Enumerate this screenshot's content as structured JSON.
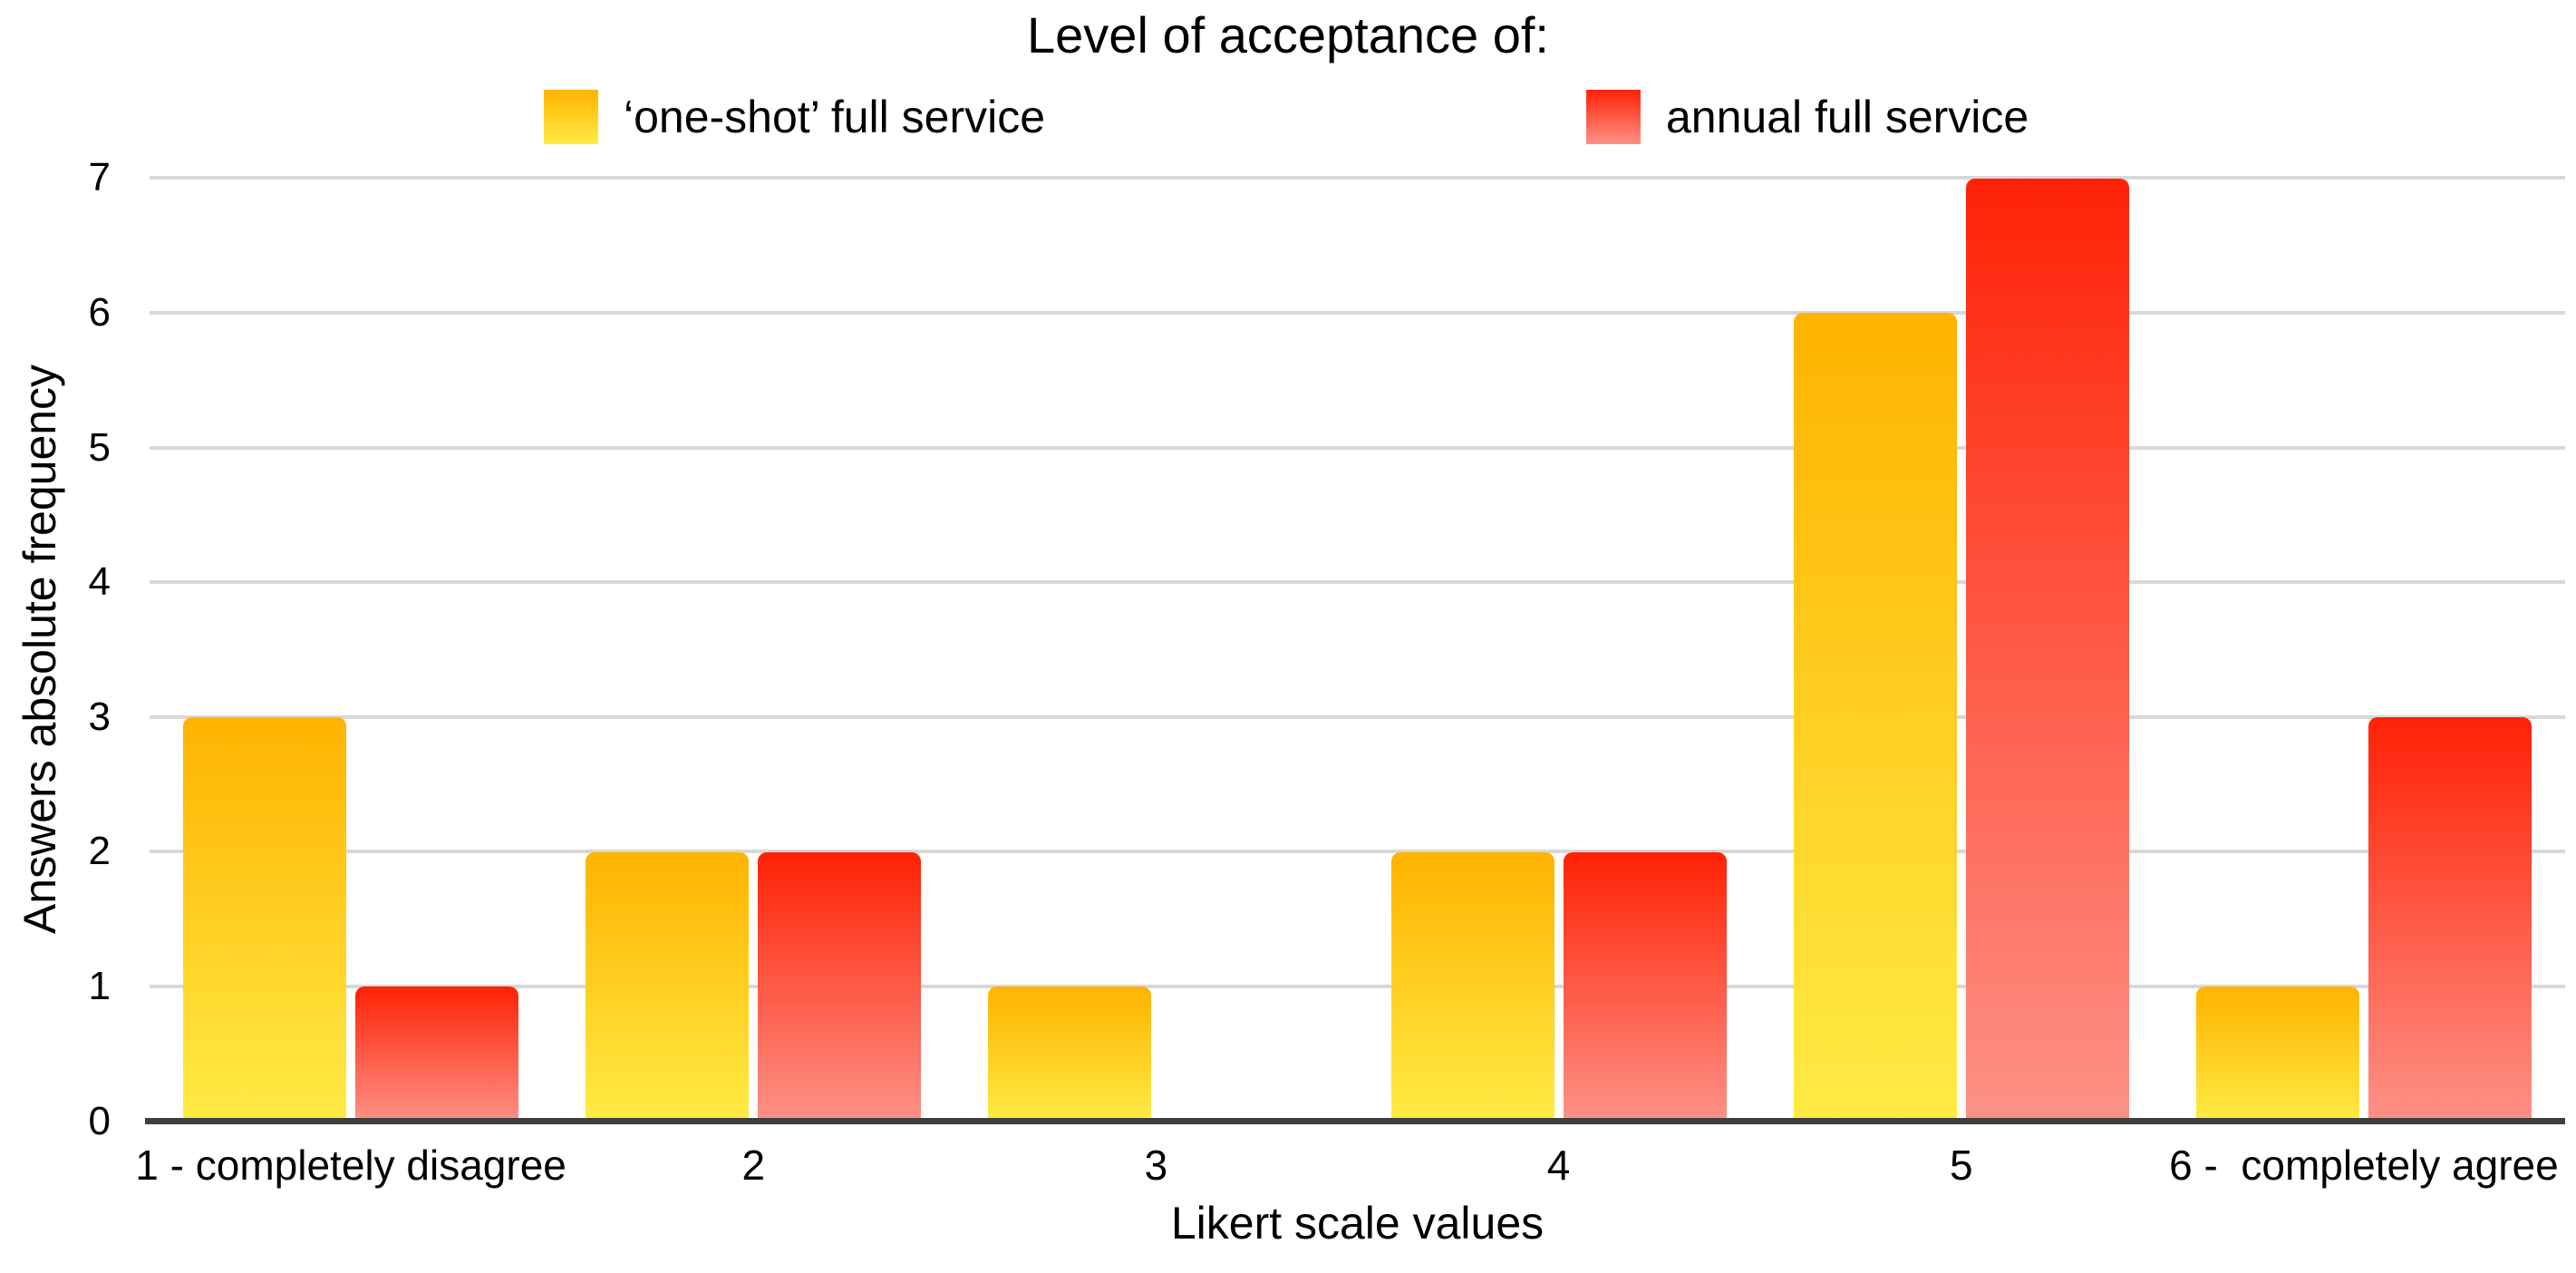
{
  "chart_data": {
    "type": "bar",
    "title": "Level of acceptance of:",
    "categories": [
      "1 - completely disagree",
      "2",
      "3",
      "4",
      "5",
      "6 -  completely agree"
    ],
    "series": [
      {
        "name": "‘one-shot’ full service",
        "values": [
          3,
          2,
          1,
          2,
          6,
          1
        ],
        "color_top": "#FFB300",
        "color_bottom": "#FFEB45"
      },
      {
        "name": "annual full service",
        "values": [
          1,
          2,
          0,
          2,
          7,
          3
        ],
        "color_top": "#FF2206",
        "color_bottom": "#FD9186"
      }
    ],
    "xlabel": "Likert scale values",
    "ylabel": "Answers absolute frequency",
    "ylim": [
      0,
      7
    ],
    "yticks": [
      0,
      1,
      2,
      3,
      4,
      5,
      6,
      7
    ],
    "grid": "horizontal",
    "legend_position": "top",
    "gridline_color": "#D8D8D8",
    "axis_line_color": "#3F3F3F",
    "text_color": "#000000"
  }
}
